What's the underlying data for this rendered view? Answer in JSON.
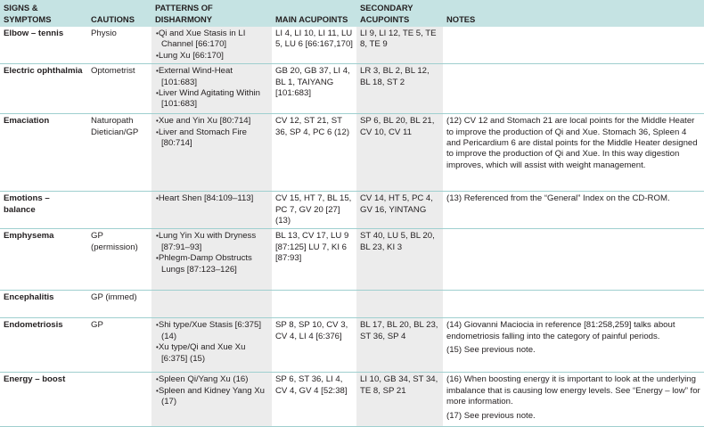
{
  "headers": [
    "SIGNS & SYMPTOMS",
    "CAUTIONS",
    "PATTERNS OF DISHARMONY",
    "MAIN ACUPOINTS",
    "SECONDARY ACUPOINTS",
    "NOTES"
  ],
  "rows": [
    {
      "sign": "Elbow – tennis",
      "cautions": [
        "Physio"
      ],
      "patterns": [
        "Qi and Xue Stasis in LI Channel [66:170]",
        "Lung Xu [66:170]"
      ],
      "main": "LI 4, LI 10, LI 11, LU 5, LU 6 [66:167,170]",
      "secondary": "LI 9, LI 12, TE 5, TE 8, TE 9",
      "notes": []
    },
    {
      "sign": "Electric ophthalmia",
      "cautions": [
        "Optometrist"
      ],
      "patterns": [
        "External Wind-Heat [101:683]",
        "Liver Wind Agitating Within [101:683]"
      ],
      "main": "GB 20, GB 37, LI 4, BL 1, TAIYANG [101:683]",
      "secondary": "LR 3, BL 2, BL 12, BL 18, ST 2",
      "notes": []
    },
    {
      "sign": "Emaciation",
      "cautions": [
        "Naturopath",
        "Dietician/GP"
      ],
      "patterns": [
        "Xue and Yin Xu [80:714]",
        "Liver and Stomach Fire [80:714]"
      ],
      "main": "CV 12, ST 21, ST 36, SP 4, PC 6 (12)",
      "secondary": "SP 6, BL 20, BL 21, CV 10, CV 11",
      "notes": [
        "(12) CV 12 and Stomach 21 are local points for the Middle Heater to improve the production of Qi and Xue. Stomach 36, Spleen 4 and Pericardium 6 are distal points for the Middle Heater designed to improve the production of Qi and Xue. In this way digestion improves, which will assist with weight management."
      ]
    },
    {
      "sign": "Emotions – balance",
      "cautions": [],
      "patterns": [
        "Heart Shen [84:109–113]"
      ],
      "main": "CV 15, HT 7, BL 15, PC 7, GV 20 [27] (13)",
      "secondary": "CV 14, HT 5, PC 4, GV 16, YINTANG",
      "notes": [
        "(13) Referenced from the “General” Index on the CD-ROM."
      ]
    },
    {
      "sign": "Emphysema",
      "cautions": [
        "GP (permission)"
      ],
      "patterns": [
        "Lung Yin Xu with Dryness [87:91–93]",
        "Phlegm-Damp Obstructs Lungs [87:123–126]"
      ],
      "main": "BL 13, CV 17, LU 9 [87:125] LU 7, KI 6 [87:93]",
      "secondary": "ST 40, LU 5, BL 20, BL 23, KI 3",
      "notes": []
    },
    {
      "sign": "Encephalitis",
      "cautions": [
        "GP (immed)"
      ],
      "patterns": [],
      "main": "",
      "secondary": "",
      "notes": []
    },
    {
      "sign": "Endometriosis",
      "cautions": [
        "GP"
      ],
      "patterns": [
        "Shi type/Xue Stasis [6:375] (14)",
        "Xu type/Qi and Xue Xu [6:375] (15)"
      ],
      "main": "SP 8, SP 10, CV 3, CV 4, LI 4 [6:376]",
      "secondary": "BL 17, BL 20, BL 23, ST 36, SP 4",
      "notes": [
        "(14) Giovanni Maciocia in reference [81:258,259] talks about endometriosis falling into the category of painful periods.",
        "(15) See previous note."
      ]
    },
    {
      "sign": "Energy – boost",
      "cautions": [],
      "patterns": [
        "Spleen Qi/Yang Xu (16)",
        "Spleen and Kidney Yang Xu (17)"
      ],
      "main": "SP 6, ST 36, LI 4, CV 4, GV 4 [52:38]",
      "secondary": "LI 10, GB 34, ST 34, TE 8, SP 21",
      "notes": [
        "(16) When boosting energy it is important to look at the underlying imbalance that is causing low energy levels. See “Energy – low” for more information.",
        "(17) See previous note."
      ]
    }
  ]
}
